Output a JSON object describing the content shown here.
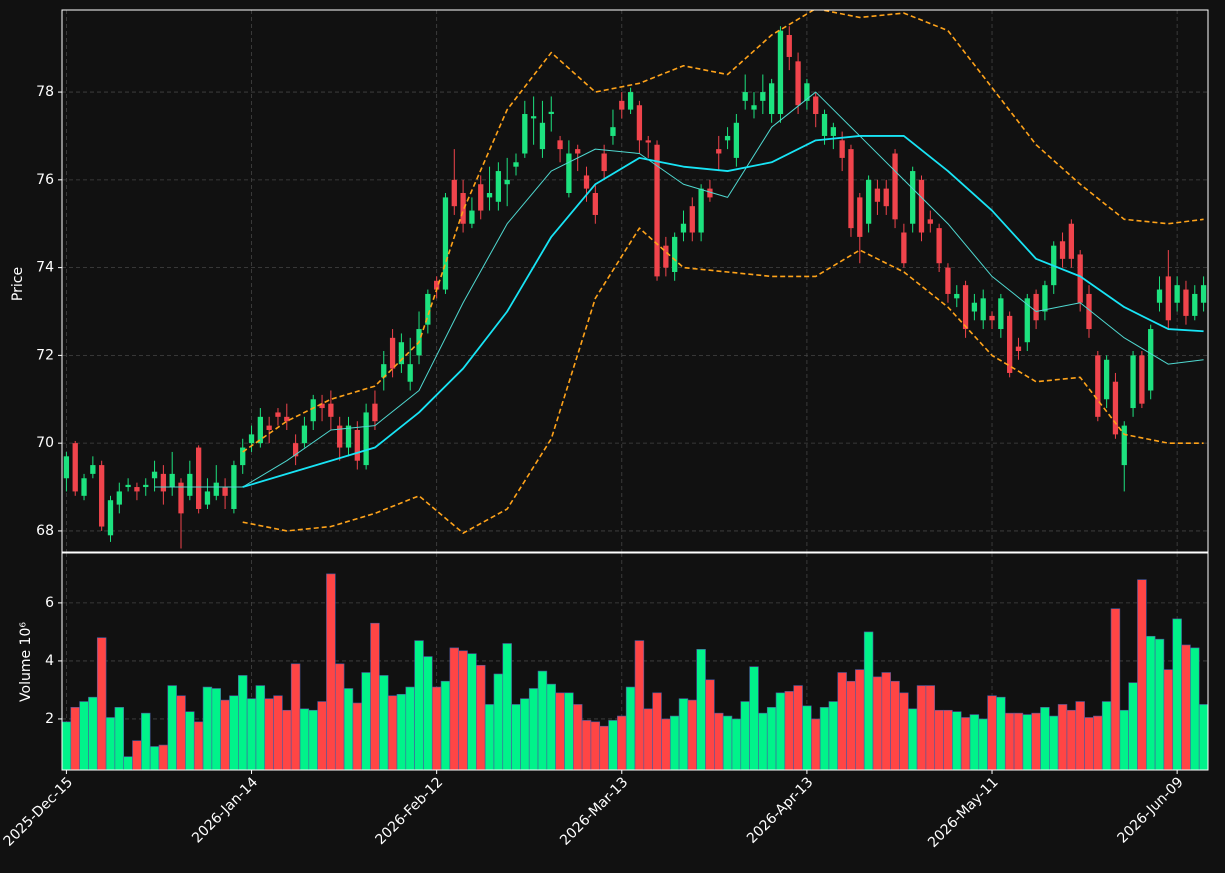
{
  "chart_data": {
    "type": "candlestick",
    "ylabel": "Price",
    "ylim": [
      67.52,
      79.87
    ],
    "yticks": [
      68,
      70,
      72,
      74,
      76,
      78
    ],
    "xlim": [
      -0.5,
      129.5
    ],
    "xticks": [
      {
        "value": 0,
        "label": "2025-Dec-15"
      },
      {
        "value": 21,
        "label": "2026-Jan-14"
      },
      {
        "value": 42,
        "label": "2026-Feb-12"
      },
      {
        "value": 63,
        "label": "2026-Mar-13"
      },
      {
        "value": 84,
        "label": "2026-Apr-13"
      },
      {
        "value": 105,
        "label": "2026-May-11"
      },
      {
        "value": 126,
        "label": "2026-Jun-09"
      }
    ],
    "grid": true,
    "up_color": "#1de27f",
    "down_color": "#f0444c",
    "open": [
      69.2,
      70.0,
      68.8,
      69.3,
      69.5,
      67.9,
      68.6,
      69.0,
      69.0,
      69.0,
      69.2,
      69.3,
      69.0,
      69.1,
      68.8,
      69.9,
      68.6,
      68.8,
      69.0,
      68.5,
      69.5,
      70.0,
      70.0,
      70.4,
      70.7,
      70.6,
      70.0,
      70.0,
      70.5,
      70.9,
      70.9,
      70.4,
      69.9,
      70.3,
      69.5,
      70.9,
      71.5,
      72.4,
      71.8,
      71.4,
      72.0,
      72.7,
      73.7,
      73.5,
      76.0,
      75.7,
      75.0,
      75.9,
      75.6,
      75.5,
      75.9,
      76.3,
      76.6,
      77.4,
      76.7,
      77.5,
      76.9,
      75.7,
      76.7,
      76.1,
      75.7,
      76.6,
      77.0,
      77.8,
      77.6,
      77.7,
      76.9,
      76.8,
      74.5,
      73.9,
      74.8,
      75.4,
      74.8,
      75.8,
      76.7,
      76.9,
      76.5,
      77.8,
      77.6,
      77.8,
      77.5,
      77.5,
      79.3,
      78.7,
      77.8,
      77.9,
      77.0,
      77.0,
      76.9,
      76.7,
      75.6,
      75.0,
      75.8,
      75.8,
      76.6,
      74.8,
      75.0,
      76.0,
      75.1,
      74.9,
      74.0,
      73.3,
      73.6,
      73.0,
      72.8,
      72.9,
      72.6,
      72.9,
      72.2,
      72.3,
      73.4,
      73.0,
      73.6,
      74.6,
      75.0,
      74.3,
      73.4,
      72.0,
      71.0,
      71.4,
      69.5,
      70.8,
      72.0,
      71.2,
      73.2,
      73.8,
      73.2,
      73.5,
      72.9,
      73.2
    ],
    "high": [
      69.8,
      70.05,
      69.3,
      69.7,
      69.6,
      68.8,
      69.1,
      69.2,
      69.1,
      69.2,
      69.6,
      69.5,
      69.8,
      69.2,
      69.6,
      69.95,
      69.2,
      69.5,
      69.2,
      69.6,
      70.1,
      70.4,
      70.8,
      70.6,
      70.8,
      70.9,
      70.2,
      70.6,
      71.1,
      71.1,
      71.2,
      70.6,
      70.6,
      70.5,
      70.9,
      71.2,
      72.1,
      72.6,
      72.5,
      72.4,
      73.0,
      73.5,
      73.8,
      75.7,
      76.7,
      76.0,
      75.6,
      76.1,
      76.3,
      76.4,
      76.5,
      76.6,
      77.8,
      77.9,
      77.8,
      77.9,
      77.0,
      76.9,
      76.8,
      76.3,
      75.9,
      76.8,
      77.6,
      78.0,
      78.1,
      77.8,
      77.0,
      76.9,
      74.7,
      74.8,
      75.3,
      75.6,
      75.9,
      76.0,
      77.0,
      77.2,
      77.5,
      78.4,
      78.0,
      78.4,
      78.3,
      79.5,
      79.5,
      78.9,
      78.3,
      78.0,
      77.6,
      77.3,
      77.1,
      76.8,
      75.7,
      76.1,
      76.0,
      76.0,
      76.7,
      75.0,
      76.3,
      76.1,
      75.3,
      75.0,
      74.1,
      73.6,
      73.7,
      73.4,
      73.5,
      73.0,
      73.4,
      73.0,
      72.4,
      73.4,
      73.5,
      73.7,
      74.6,
      74.8,
      75.1,
      74.4,
      73.6,
      72.1,
      72.0,
      71.6,
      70.5,
      72.1,
      72.1,
      72.7,
      73.8,
      74.4,
      73.8,
      73.7,
      73.6,
      73.8
    ],
    "low": [
      68.9,
      68.8,
      68.7,
      69.2,
      68.0,
      67.75,
      68.4,
      68.9,
      68.7,
      68.8,
      68.9,
      68.6,
      68.8,
      67.6,
      68.7,
      68.4,
      68.5,
      68.7,
      68.5,
      68.4,
      69.3,
      69.8,
      69.9,
      70.0,
      70.4,
      70.3,
      69.5,
      69.9,
      70.3,
      70.5,
      70.3,
      69.6,
      69.7,
      69.4,
      69.4,
      70.3,
      71.2,
      71.5,
      71.6,
      71.2,
      71.8,
      72.5,
      73.3,
      73.4,
      75.2,
      74.8,
      74.9,
      75.1,
      75.3,
      75.3,
      75.4,
      76.1,
      76.5,
      76.8,
      76.5,
      77.1,
      76.4,
      75.6,
      76.2,
      75.5,
      75.0,
      76.0,
      76.8,
      77.4,
      77.5,
      76.6,
      76.5,
      73.7,
      73.8,
      73.7,
      74.6,
      74.6,
      74.6,
      75.5,
      76.2,
      76.7,
      76.3,
      77.6,
      77.4,
      77.5,
      77.3,
      77.3,
      78.5,
      77.5,
      77.6,
      77.2,
      76.8,
      76.7,
      76.2,
      74.7,
      74.1,
      74.8,
      75.2,
      75.2,
      74.9,
      74.0,
      74.8,
      74.6,
      74.8,
      73.9,
      73.2,
      73.1,
      72.4,
      72.8,
      72.6,
      72.6,
      72.4,
      71.5,
      71.9,
      72.1,
      72.6,
      72.8,
      73.4,
      74.0,
      74.0,
      73.0,
      72.4,
      70.5,
      70.8,
      70.1,
      68.9,
      70.6,
      70.8,
      71.0,
      73.0,
      72.6,
      73.0,
      72.7,
      72.8,
      73.0
    ],
    "close": [
      69.7,
      68.9,
      69.2,
      69.5,
      68.1,
      68.7,
      68.9,
      69.05,
      68.9,
      69.05,
      69.35,
      68.9,
      69.3,
      68.4,
      69.3,
      68.5,
      68.9,
      69.1,
      68.8,
      69.5,
      69.9,
      70.2,
      70.6,
      70.3,
      70.6,
      70.5,
      69.7,
      70.4,
      71.0,
      70.8,
      70.6,
      69.9,
      70.4,
      69.6,
      70.7,
      70.5,
      71.8,
      71.7,
      72.3,
      71.8,
      72.6,
      73.4,
      73.5,
      75.6,
      75.4,
      75.0,
      75.3,
      75.3,
      75.7,
      76.2,
      76.0,
      76.4,
      77.5,
      77.45,
      77.3,
      77.55,
      76.7,
      76.6,
      76.6,
      75.8,
      75.2,
      76.2,
      77.2,
      77.6,
      78.0,
      76.9,
      76.85,
      73.8,
      74.0,
      74.7,
      75.0,
      74.8,
      75.8,
      75.6,
      76.6,
      77.0,
      77.3,
      78.0,
      77.7,
      78.0,
      78.2,
      79.4,
      78.8,
      77.7,
      78.2,
      77.5,
      77.5,
      77.2,
      76.5,
      74.9,
      74.7,
      76.0,
      75.5,
      75.4,
      75.1,
      74.1,
      76.2,
      74.8,
      75.0,
      74.1,
      73.4,
      73.4,
      72.6,
      73.2,
      73.3,
      72.8,
      73.3,
      71.6,
      72.1,
      73.3,
      72.8,
      73.6,
      74.5,
      74.2,
      74.2,
      73.2,
      72.6,
      70.6,
      71.9,
      70.2,
      70.4,
      72.0,
      70.9,
      72.6,
      73.5,
      72.8,
      73.6,
      72.9,
      73.4,
      73.6
    ],
    "lines": [
      {
        "color": "#ffa31a",
        "width": 1.6,
        "dash": true,
        "x": [
          20,
          25,
          30,
          35,
          40,
          45,
          50,
          55,
          60,
          65,
          70,
          75,
          80,
          85,
          90,
          95,
          100,
          105,
          110,
          115,
          120,
          125,
          129
        ],
        "values": [
          69.8,
          70.5,
          71.0,
          71.3,
          72.3,
          75.3,
          77.6,
          78.9,
          78.0,
          78.2,
          78.6,
          78.4,
          79.3,
          79.9,
          79.7,
          79.8,
          79.4,
          78.1,
          76.8,
          75.9,
          75.1,
          75.0,
          75.1
        ]
      },
      {
        "color": "#ffa31a",
        "width": 1.6,
        "dash": true,
        "x": [
          20,
          25,
          30,
          35,
          40,
          45,
          50,
          55,
          60,
          65,
          70,
          75,
          80,
          85,
          90,
          95,
          100,
          105,
          110,
          115,
          120,
          125,
          129
        ],
        "values": [
          68.2,
          68.0,
          68.1,
          68.4,
          68.8,
          67.95,
          68.5,
          70.1,
          73.3,
          74.9,
          74.0,
          73.9,
          73.8,
          73.8,
          74.4,
          73.9,
          73.1,
          72.0,
          71.4,
          71.5,
          70.2,
          70.0,
          70.0
        ]
      },
      {
        "color": "#4fd8d0",
        "width": 1,
        "dash": false,
        "x": [
          10,
          15,
          20,
          25,
          30,
          35,
          40,
          45,
          50,
          55,
          60,
          65,
          70,
          75,
          80,
          85,
          90,
          95,
          100,
          105,
          110,
          115,
          120,
          125,
          129
        ],
        "values": [
          69.0,
          69.0,
          69.0,
          69.6,
          70.3,
          70.4,
          71.2,
          73.2,
          75.0,
          76.2,
          76.7,
          76.6,
          75.9,
          75.6,
          77.2,
          78.0,
          77.0,
          76.0,
          75.0,
          73.8,
          73.0,
          73.2,
          72.4,
          71.8,
          71.9
        ]
      },
      {
        "color": "#18e4f5",
        "width": 1.8,
        "dash": false,
        "x": [
          20,
          25,
          30,
          35,
          40,
          45,
          50,
          55,
          60,
          65,
          70,
          75,
          80,
          85,
          90,
          95,
          100,
          105,
          110,
          115,
          120,
          125,
          129
        ],
        "values": [
          69.0,
          69.3,
          69.6,
          69.9,
          70.7,
          71.7,
          73.0,
          74.7,
          75.9,
          76.5,
          76.3,
          76.2,
          76.4,
          76.9,
          77.0,
          77.0,
          76.2,
          75.3,
          74.2,
          73.8,
          73.1,
          72.6,
          72.55
        ]
      }
    ],
    "volume": {
      "ylabel": "Volume  10⁶",
      "ylim": [
        0.24,
        7.72
      ],
      "yticks": [
        2,
        4,
        6
      ],
      "values": [
        1.9,
        2.4,
        2.6,
        2.75,
        4.8,
        2.05,
        2.4,
        0.7,
        1.25,
        2.2,
        1.05,
        1.1,
        3.15,
        2.8,
        2.25,
        1.9,
        3.1,
        3.05,
        2.65,
        2.8,
        3.5,
        2.7,
        3.15,
        2.7,
        2.8,
        2.3,
        3.9,
        2.35,
        2.3,
        2.6,
        7.0,
        3.9,
        3.05,
        2.55,
        3.6,
        5.3,
        3.5,
        2.8,
        2.85,
        3.1,
        4.7,
        4.15,
        3.1,
        3.3,
        4.45,
        4.35,
        4.25,
        3.85,
        2.5,
        3.55,
        4.6,
        2.5,
        2.7,
        3.05,
        3.65,
        3.2,
        2.9,
        2.9,
        2.5,
        1.95,
        1.9,
        1.75,
        1.95,
        2.1,
        3.1,
        4.7,
        2.35,
        2.9,
        2.0,
        2.1,
        2.7,
        2.65,
        4.4,
        3.35,
        2.2,
        2.1,
        2.0,
        2.6,
        3.8,
        2.2,
        2.4,
        2.9,
        2.95,
        3.15,
        2.45,
        2.0,
        2.4,
        2.6,
        3.6,
        3.3,
        3.7,
        5.0,
        3.45,
        3.6,
        3.3,
        2.9,
        2.35,
        3.15,
        3.15,
        2.3,
        2.3,
        2.25,
        2.05,
        2.15,
        2.0,
        2.8,
        2.75,
        2.2,
        2.2,
        2.15,
        2.2,
        2.4,
        2.1,
        2.5,
        2.3,
        2.6,
        2.05,
        2.1,
        2.6,
        5.8,
        2.3,
        3.25,
        6.8,
        4.85,
        4.75,
        3.7,
        5.45,
        4.55,
        4.45,
        2.5
      ]
    }
  }
}
